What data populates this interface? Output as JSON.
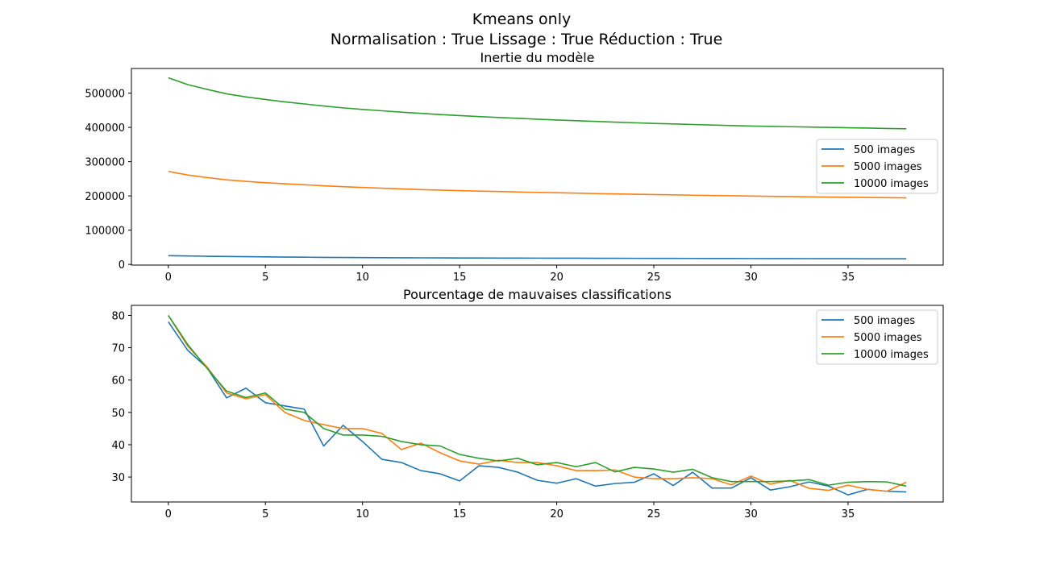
{
  "figure": {
    "title_line1": "Kmeans only",
    "title_line2": "Normalisation : True Lissage : True Réduction : True"
  },
  "chart_data": [
    {
      "type": "line",
      "title": "Inertie du modèle",
      "xlabel": "",
      "ylabel": "",
      "x": [
        0,
        1,
        2,
        3,
        4,
        5,
        6,
        7,
        8,
        9,
        10,
        11,
        12,
        13,
        14,
        15,
        16,
        17,
        18,
        19,
        20,
        21,
        22,
        23,
        24,
        25,
        26,
        27,
        28,
        29,
        30,
        31,
        32,
        33,
        34,
        35,
        36,
        37,
        38
      ],
      "xlim": [
        -1.9,
        39.9
      ],
      "ylim": [
        -2000,
        572000
      ],
      "xticks": [
        0,
        5,
        10,
        15,
        20,
        25,
        30,
        35
      ],
      "yticks": [
        0,
        100000,
        200000,
        300000,
        400000,
        500000
      ],
      "legend_position": "center-right",
      "grid": false,
      "series": [
        {
          "name": "500 images",
          "color": "#1f77b4",
          "values": [
            25500,
            24600,
            23800,
            23100,
            22500,
            21900,
            21400,
            21000,
            20600,
            20200,
            19900,
            19700,
            19400,
            19200,
            19000,
            18800,
            18700,
            18500,
            18400,
            18300,
            18200,
            18100,
            17900,
            17800,
            17700,
            17600,
            17500,
            17400,
            17300,
            17200,
            17100,
            17000,
            16900,
            16800,
            16700,
            16600,
            16500,
            16400,
            16300
          ]
        },
        {
          "name": "5000 images",
          "color": "#ff7f0e",
          "values": [
            271500,
            261000,
            253500,
            247000,
            242500,
            238500,
            235500,
            232500,
            229500,
            227000,
            224500,
            222500,
            220500,
            218500,
            217000,
            215500,
            214000,
            212800,
            211500,
            210300,
            209200,
            208000,
            206800,
            205800,
            204800,
            203900,
            203000,
            202100,
            201200,
            200400,
            199600,
            198800,
            198000,
            197300,
            196600,
            196000,
            195400,
            194800,
            194200
          ]
        },
        {
          "name": "10000 images",
          "color": "#2ca02c",
          "values": [
            545000,
            525000,
            511000,
            498000,
            489000,
            481500,
            474500,
            468500,
            462500,
            457000,
            452500,
            448500,
            444500,
            441000,
            437500,
            434500,
            431500,
            429000,
            426500,
            424000,
            421500,
            419500,
            417500,
            415500,
            413500,
            411500,
            410000,
            408500,
            407000,
            405500,
            404000,
            403000,
            402000,
            401000,
            400000,
            399000,
            398000,
            397000,
            396000
          ]
        }
      ]
    },
    {
      "type": "line",
      "title": "Pourcentage de mauvaises classifications",
      "xlabel": "",
      "ylabel": "",
      "x": [
        0,
        1,
        2,
        3,
        4,
        5,
        6,
        7,
        8,
        9,
        10,
        11,
        12,
        13,
        14,
        15,
        16,
        17,
        18,
        19,
        20,
        21,
        22,
        23,
        24,
        25,
        26,
        27,
        28,
        29,
        30,
        31,
        32,
        33,
        34,
        35,
        36,
        37,
        38
      ],
      "xlim": [
        -1.9,
        39.9
      ],
      "ylim": [
        22.3,
        83.1
      ],
      "xticks": [
        0,
        5,
        10,
        15,
        20,
        25,
        30,
        35
      ],
      "yticks": [
        30,
        40,
        50,
        60,
        70,
        80
      ],
      "legend_position": "top-right",
      "grid": false,
      "series": [
        {
          "name": "500 images",
          "color": "#1f77b4",
          "values": [
            78.0,
            69.2,
            63.8,
            54.5,
            57.5,
            53.0,
            52.0,
            51.0,
            39.6,
            46.0,
            41.0,
            35.5,
            34.5,
            32.0,
            31.0,
            28.8,
            33.5,
            33.0,
            31.5,
            29.0,
            28.1,
            29.5,
            27.2,
            28.0,
            28.4,
            31.0,
            27.4,
            31.5,
            26.6,
            26.6,
            29.8,
            26.0,
            27.0,
            28.5,
            27.2,
            24.5,
            26.2,
            25.6,
            25.4
          ]
        },
        {
          "name": "5000 images",
          "color": "#ff7f0e",
          "values": [
            80.0,
            70.5,
            64.0,
            56.0,
            54.2,
            55.5,
            50.0,
            47.5,
            46.2,
            45.0,
            45.0,
            43.5,
            38.5,
            40.5,
            37.5,
            35.0,
            34.0,
            35.2,
            34.5,
            34.5,
            33.5,
            32.0,
            32.0,
            32.2,
            30.0,
            29.5,
            29.5,
            29.8,
            29.5,
            27.6,
            30.3,
            27.8,
            29.0,
            26.5,
            25.9,
            27.5,
            26.2,
            25.6,
            28.4
          ]
        },
        {
          "name": "10000 images",
          "color": "#2ca02c",
          "values": [
            80.0,
            71.0,
            63.6,
            56.6,
            54.6,
            56.0,
            51.0,
            50.0,
            45.0,
            43.0,
            43.0,
            42.6,
            41.0,
            40.0,
            39.6,
            37.0,
            35.8,
            35.0,
            35.8,
            33.8,
            34.5,
            33.2,
            34.5,
            31.6,
            33.0,
            32.5,
            31.5,
            32.4,
            29.8,
            28.6,
            28.6,
            28.6,
            28.8,
            29.2,
            27.5,
            28.4,
            28.6,
            28.5,
            27.2
          ]
        }
      ]
    }
  ]
}
